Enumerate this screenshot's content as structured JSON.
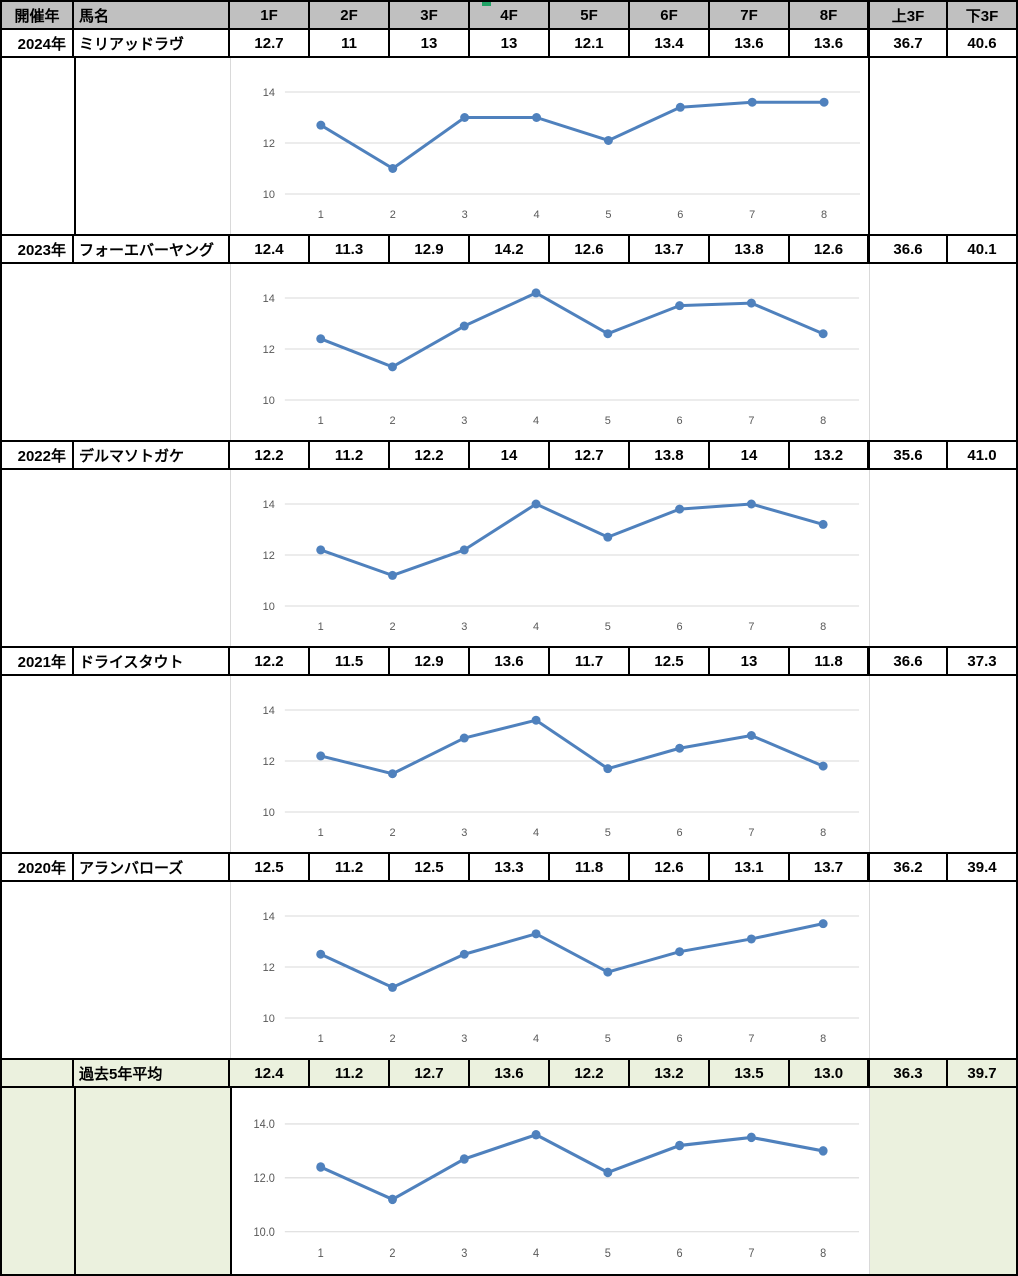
{
  "table": {
    "header": {
      "year": "開催年",
      "name": "馬名",
      "furlongs": [
        "1F",
        "2F",
        "3F",
        "4F",
        "5F",
        "6F",
        "7F",
        "8F"
      ],
      "up3f": "上3F",
      "down3f": "下3F"
    },
    "blocks": [
      {
        "year": "2024年",
        "name": "ミリアッドラヴ",
        "laps": [
          "12.7",
          "11",
          "13",
          "13",
          "12.1",
          "13.4",
          "13.6",
          "13.6"
        ],
        "up3f": "36.7",
        "down3f": "40.6"
      },
      {
        "year": "2023年",
        "name": "フォーエバーヤング",
        "laps": [
          "12.4",
          "11.3",
          "12.9",
          "14.2",
          "12.6",
          "13.7",
          "13.8",
          "12.6"
        ],
        "up3f": "36.6",
        "down3f": "40.1"
      },
      {
        "year": "2022年",
        "name": "デルマソトガケ",
        "laps": [
          "12.2",
          "11.2",
          "12.2",
          "14",
          "12.7",
          "13.8",
          "14",
          "13.2"
        ],
        "up3f": "35.6",
        "down3f": "41.0"
      },
      {
        "year": "2021年",
        "name": "ドライスタウト",
        "laps": [
          "12.2",
          "11.5",
          "12.9",
          "13.6",
          "11.7",
          "12.5",
          "13",
          "11.8"
        ],
        "up3f": "36.6",
        "down3f": "37.3"
      },
      {
        "year": "2020年",
        "name": "アランバローズ",
        "laps": [
          "12.5",
          "11.2",
          "12.5",
          "13.3",
          "11.8",
          "12.6",
          "13.1",
          "13.7"
        ],
        "up3f": "36.2",
        "down3f": "39.4"
      }
    ],
    "average": {
      "year": "",
      "name": "過去5年平均",
      "laps": [
        "12.4",
        "11.2",
        "12.7",
        "13.6",
        "12.2",
        "13.2",
        "13.5",
        "13.0"
      ],
      "up3f": "36.3",
      "down3f": "39.7"
    }
  },
  "chart_data": [
    {
      "type": "line",
      "series_label": "2024年 ミリアッドラヴ",
      "x": [
        1,
        2,
        3,
        4,
        5,
        6,
        7,
        8
      ],
      "x_labels": [
        "1",
        "2",
        "3",
        "4",
        "5",
        "6",
        "7",
        "8"
      ],
      "y": [
        12.7,
        11,
        13,
        13,
        12.1,
        13.4,
        13.6,
        13.6
      ],
      "ylim": [
        10,
        14
      ],
      "y_ticks": [
        {
          "v": 14,
          "label": "14"
        },
        {
          "v": 12,
          "label": "12"
        },
        {
          "v": 10,
          "label": "10"
        }
      ],
      "grid": true,
      "legend": "none",
      "xlabel": "",
      "ylabel": ""
    },
    {
      "type": "line",
      "series_label": "2023年 フォーエバーヤング",
      "x": [
        1,
        2,
        3,
        4,
        5,
        6,
        7,
        8
      ],
      "x_labels": [
        "1",
        "2",
        "3",
        "4",
        "5",
        "6",
        "7",
        "8"
      ],
      "y": [
        12.4,
        11.3,
        12.9,
        14.2,
        12.6,
        13.7,
        13.8,
        12.6
      ],
      "ylim": [
        10,
        14
      ],
      "y_ticks": [
        {
          "v": 14,
          "label": "14"
        },
        {
          "v": 12,
          "label": "12"
        },
        {
          "v": 10,
          "label": "10"
        }
      ],
      "grid": true,
      "legend": "none",
      "xlabel": "",
      "ylabel": ""
    },
    {
      "type": "line",
      "series_label": "2022年 デルマソトガケ",
      "x": [
        1,
        2,
        3,
        4,
        5,
        6,
        7,
        8
      ],
      "x_labels": [
        "1",
        "2",
        "3",
        "4",
        "5",
        "6",
        "7",
        "8"
      ],
      "y": [
        12.2,
        11.2,
        12.2,
        14,
        12.7,
        13.8,
        14,
        13.2
      ],
      "ylim": [
        10,
        14
      ],
      "y_ticks": [
        {
          "v": 14,
          "label": "14"
        },
        {
          "v": 12,
          "label": "12"
        },
        {
          "v": 10,
          "label": "10"
        }
      ],
      "grid": true,
      "legend": "none",
      "xlabel": "",
      "ylabel": ""
    },
    {
      "type": "line",
      "series_label": "2021年 ドライスタウト",
      "x": [
        1,
        2,
        3,
        4,
        5,
        6,
        7,
        8
      ],
      "x_labels": [
        "1",
        "2",
        "3",
        "4",
        "5",
        "6",
        "7",
        "8"
      ],
      "y": [
        12.2,
        11.5,
        12.9,
        13.6,
        11.7,
        12.5,
        13,
        11.8
      ],
      "ylim": [
        10,
        14
      ],
      "y_ticks": [
        {
          "v": 14,
          "label": "14"
        },
        {
          "v": 12,
          "label": "12"
        },
        {
          "v": 10,
          "label": "10"
        }
      ],
      "grid": true,
      "legend": "none",
      "xlabel": "",
      "ylabel": ""
    },
    {
      "type": "line",
      "series_label": "2020年 アランバローズ",
      "x": [
        1,
        2,
        3,
        4,
        5,
        6,
        7,
        8
      ],
      "x_labels": [
        "1",
        "2",
        "3",
        "4",
        "5",
        "6",
        "7",
        "8"
      ],
      "y": [
        12.5,
        11.2,
        12.5,
        13.3,
        11.8,
        12.6,
        13.1,
        13.7
      ],
      "ylim": [
        10,
        14
      ],
      "y_ticks": [
        {
          "v": 14,
          "label": "14"
        },
        {
          "v": 12,
          "label": "12"
        },
        {
          "v": 10,
          "label": "10"
        }
      ],
      "grid": true,
      "legend": "none",
      "xlabel": "",
      "ylabel": ""
    },
    {
      "type": "line",
      "series_label": "過去5年平均",
      "x": [
        1,
        2,
        3,
        4,
        5,
        6,
        7,
        8
      ],
      "x_labels": [
        "1",
        "2",
        "3",
        "4",
        "5",
        "6",
        "7",
        "8"
      ],
      "y": [
        12.4,
        11.2,
        12.7,
        13.6,
        12.2,
        13.2,
        13.5,
        13.0
      ],
      "ylim": [
        10,
        14
      ],
      "y_ticks": [
        {
          "v": 14,
          "label": "14.0"
        },
        {
          "v": 12,
          "label": "12.0"
        },
        {
          "v": 10,
          "label": "10.0"
        }
      ],
      "grid": true,
      "legend": "none",
      "xlabel": "",
      "ylabel": ""
    }
  ],
  "style": {
    "header_bg": "#C0C0C0",
    "average_bg": "#EBF1DE",
    "line_color": "#4F81BD",
    "grid_color": "#D9D9D9",
    "tick_color": "#595959",
    "border_color": "#000000",
    "marker_color": "#21A366"
  }
}
